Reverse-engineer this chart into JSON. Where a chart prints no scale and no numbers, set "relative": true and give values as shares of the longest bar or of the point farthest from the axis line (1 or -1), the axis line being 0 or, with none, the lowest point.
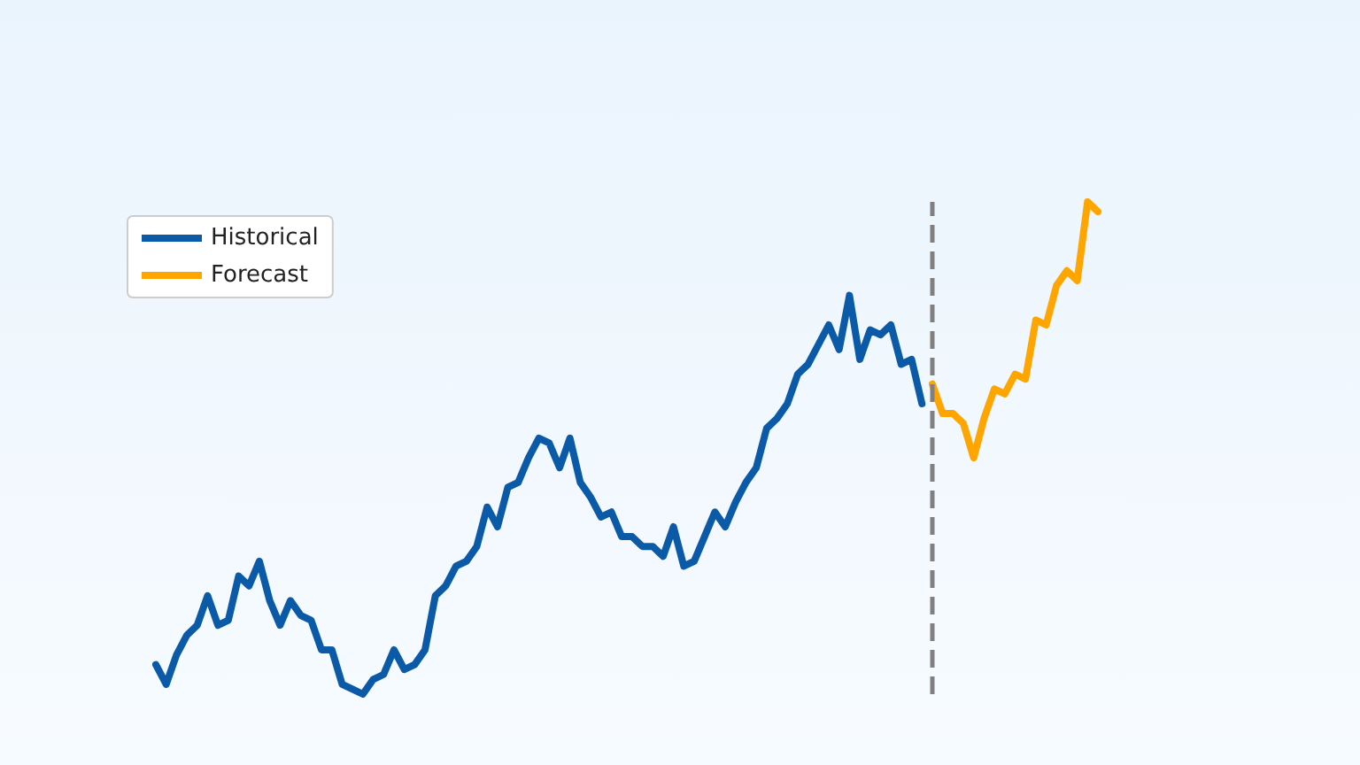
{
  "chart_data": {
    "type": "line",
    "relative": true,
    "categories": [
      null,
      null,
      null,
      null,
      null,
      null,
      null,
      null,
      null,
      null,
      null,
      null,
      null,
      null,
      null,
      null,
      null,
      null,
      null,
      null,
      null,
      null,
      null,
      null,
      null,
      null,
      null,
      null,
      null,
      null,
      null,
      null,
      null,
      null,
      null,
      null,
      null,
      null,
      null,
      null,
      null,
      null,
      null,
      null,
      null,
      null,
      null,
      null,
      null,
      null,
      null,
      null,
      null,
      null,
      null,
      null,
      null,
      null,
      null,
      null,
      null,
      null,
      null,
      null,
      null,
      null,
      null,
      null,
      null,
      null,
      null,
      null,
      null,
      null,
      null,
      null,
      null,
      null,
      null,
      null,
      null,
      null,
      null,
      null,
      null,
      null,
      null,
      null,
      null,
      null,
      null,
      null
    ],
    "series": [
      {
        "name": "Historical",
        "color": "#0b5aa8",
        "values": [
          0.06,
          0.02,
          0.08,
          0.12,
          0.14,
          0.2,
          0.14,
          0.15,
          0.24,
          0.22,
          0.27,
          0.19,
          0.14,
          0.19,
          0.16,
          0.15,
          0.09,
          0.09,
          0.02,
          0.01,
          0,
          0.03,
          0.04,
          0.09,
          0.05,
          0.06,
          0.09,
          0.2,
          0.22,
          0.26,
          0.27,
          0.3,
          0.38,
          0.34,
          0.42,
          0.43,
          0.48,
          0.52,
          0.51,
          0.46,
          0.52,
          0.43,
          0.4,
          0.36,
          0.37,
          0.32,
          0.32,
          0.3,
          0.3,
          0.28,
          0.34,
          0.26,
          0.27,
          0.32,
          0.37,
          0.34,
          0.39,
          0.43,
          0.46,
          0.54,
          0.56,
          0.59,
          0.65,
          0.67,
          0.71,
          0.75,
          0.7,
          0.81,
          0.68,
          0.74,
          0.73,
          0.75,
          0.67,
          0.68,
          0.59,
          null,
          null,
          null,
          null,
          null,
          null,
          null,
          null,
          null,
          null,
          null,
          null,
          null,
          null,
          null,
          null,
          null
        ]
      },
      {
        "name": "Forecast",
        "color": "#ffa500",
        "values": [
          null,
          null,
          null,
          null,
          null,
          null,
          null,
          null,
          null,
          null,
          null,
          null,
          null,
          null,
          null,
          null,
          null,
          null,
          null,
          null,
          null,
          null,
          null,
          null,
          null,
          null,
          null,
          null,
          null,
          null,
          null,
          null,
          null,
          null,
          null,
          null,
          null,
          null,
          null,
          null,
          null,
          null,
          null,
          null,
          null,
          null,
          null,
          null,
          null,
          null,
          null,
          null,
          null,
          null,
          null,
          null,
          null,
          null,
          null,
          null,
          null,
          null,
          null,
          null,
          null,
          null,
          null,
          null,
          null,
          null,
          null,
          null,
          null,
          null,
          null,
          0.63,
          0.57,
          0.57,
          0.55,
          0.48,
          0.56,
          0.62,
          0.61,
          0.65,
          0.64,
          0.76,
          0.75,
          0.83,
          0.86,
          0.84,
          1,
          0.98
        ]
      }
    ],
    "legend": "top left",
    "grid": false,
    "line_style": "solid"
  }
}
